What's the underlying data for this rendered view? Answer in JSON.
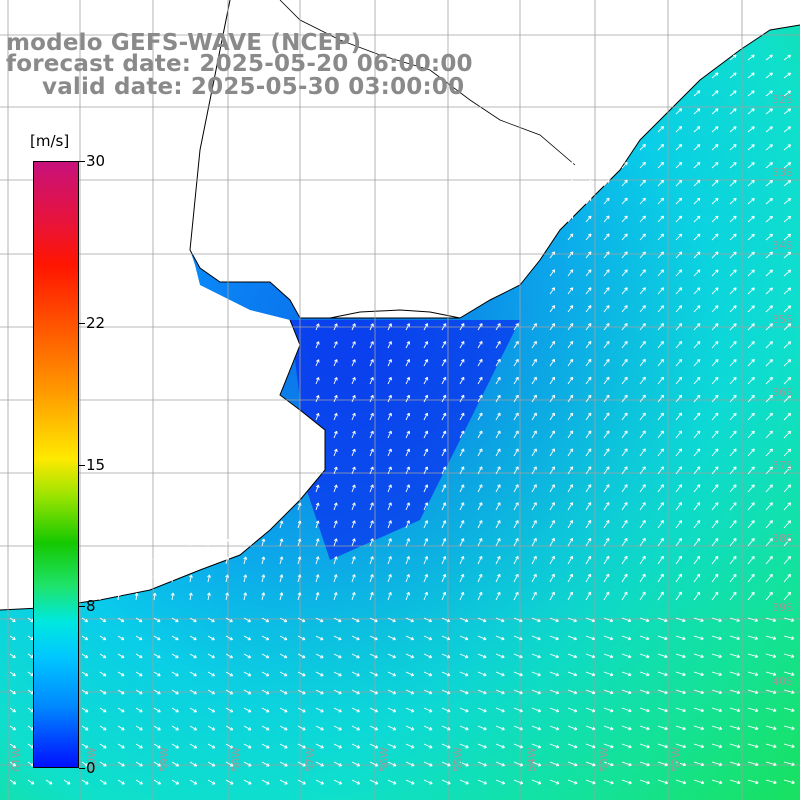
{
  "title": {
    "model": "modelo GEFS-WAVE (NCEP)",
    "forecast": "forecast date: 2025-05-20 06:00:00",
    "valid": "valid date: 2025-05-30 03:00:00"
  },
  "colorbar": {
    "unit": "[m/s]",
    "ticks": [
      "30",
      "22",
      "15",
      "8",
      "0"
    ],
    "tick_values": [
      30,
      22,
      15,
      8,
      0
    ],
    "range": [
      0,
      30
    ],
    "colors": [
      "#0010ff",
      "#0088ff",
      "#00c6ff",
      "#00e8e0",
      "#1ee36a",
      "#14c800",
      "#9ee400",
      "#ffe900",
      "#ff9a00",
      "#ff5a00",
      "#ff1500",
      "#e8133a",
      "#c8117b"
    ]
  },
  "map": {
    "lat_labels": [
      "32S",
      "33S",
      "34S",
      "35S",
      "36S",
      "37S",
      "38S",
      "39S",
      "40S"
    ],
    "lon_labels": [
      "61W",
      "60W",
      "59W",
      "58W",
      "57W",
      "56W",
      "55W",
      "54W",
      "53W",
      "52W"
    ],
    "land_color": "#ffffff",
    "grid_color": "#a0a0a0",
    "coast_color": "#000000",
    "arrow_color": "#ffffff"
  }
}
